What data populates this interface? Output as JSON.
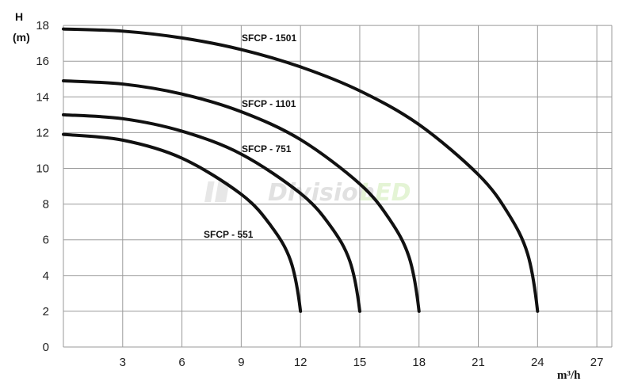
{
  "chart_data": {
    "type": "line",
    "ylabel": "H",
    "ylabel_unit": "(m)",
    "xlabel": "m³/h",
    "xlim": [
      0,
      27.8
    ],
    "ylim": [
      0,
      18
    ],
    "x_ticks": [
      "3",
      "6",
      "9",
      "12",
      "15",
      "18",
      "21",
      "24",
      "27"
    ],
    "y_ticks": [
      "0",
      "2",
      "4",
      "6",
      "8",
      "10",
      "12",
      "14",
      "16",
      "18"
    ],
    "grid": true,
    "line_color": "#111111",
    "series": [
      {
        "name": "SFCP - 1501",
        "x": [
          0,
          3,
          6,
          9,
          12,
          15,
          18,
          21,
          22.5,
          23.5,
          24
        ],
        "y": [
          17.8,
          17.68,
          17.3,
          16.65,
          15.68,
          14.34,
          12.45,
          9.65,
          7.5,
          5.2,
          2
        ]
      },
      {
        "name": "SFCP - 1101",
        "x": [
          0,
          3,
          6,
          9,
          12,
          15,
          16.5,
          17.5,
          18
        ],
        "y": [
          14.9,
          14.72,
          14.16,
          13.17,
          11.61,
          9.13,
          7.16,
          5.02,
          2
        ]
      },
      {
        "name": "SFCP - 751",
        "x": [
          0,
          3,
          6,
          9,
          12,
          13.5,
          14.5,
          15
        ],
        "y": [
          13,
          12.78,
          12.08,
          10.8,
          8.6,
          6.8,
          4.8,
          2
        ]
      },
      {
        "name": "SFCP - 551",
        "x": [
          0,
          3,
          6,
          9,
          10.5,
          11.5,
          12
        ],
        "y": [
          11.9,
          11.58,
          10.57,
          8.55,
          6.79,
          4.83,
          2
        ]
      }
    ]
  },
  "watermark": {
    "part1": "Division",
    "part2": "LED"
  }
}
